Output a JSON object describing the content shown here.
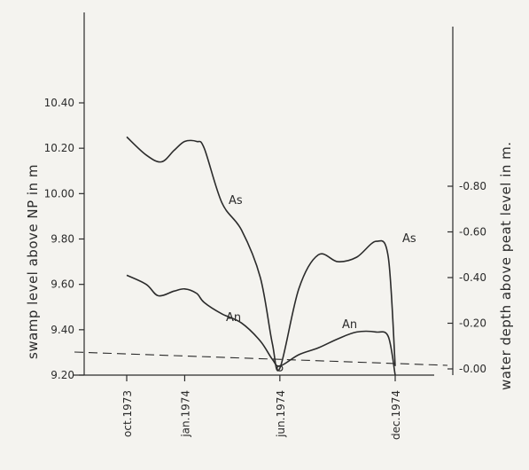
{
  "chart_data": {
    "type": "line",
    "xlabel": "",
    "x_ticks": [
      "oct.1973",
      "jan.1974",
      "jun.1974",
      "dec.1974"
    ],
    "left_axis": {
      "label": "swamp level above NP in m",
      "ylim": [
        9.2,
        10.4
      ],
      "ticks": [
        "9.20",
        "9.40",
        "9.60",
        "9.80",
        "10.00",
        "10.20",
        "10.40"
      ]
    },
    "right_axis": {
      "label": "water depth above peat level in m.",
      "ylim": [
        0.0,
        0.8
      ],
      "ticks": [
        "0.00",
        "0.20",
        "0.40",
        "0.60",
        "0.80"
      ]
    },
    "reference_line": {
      "axis": "right",
      "value": 0.0,
      "style": "dashed"
    },
    "series": [
      {
        "name": "As",
        "x": [
          "1973-10-01",
          "1973-11-01",
          "1973-11-25",
          "1973-12-15",
          "1974-01-01",
          "1974-01-20",
          "1974-02-01",
          "1974-03-01",
          "1974-04-01",
          "1974-05-01",
          "1974-05-20",
          "1974-06-01",
          "1974-07-01",
          "1974-08-01",
          "1974-09-01",
          "1974-10-01",
          "1974-11-01",
          "1974-11-20",
          "1974-12-01"
        ],
        "y": [
          10.25,
          10.17,
          10.14,
          10.19,
          10.23,
          10.23,
          10.2,
          9.96,
          9.84,
          9.63,
          9.34,
          9.23,
          9.58,
          9.73,
          9.7,
          9.72,
          9.79,
          9.72,
          9.24
        ]
      },
      {
        "name": "An",
        "x": [
          "1973-10-01",
          "1973-11-01",
          "1973-11-20",
          "1973-12-15",
          "1974-01-01",
          "1974-01-20",
          "1974-02-01",
          "1974-03-01",
          "1974-04-01",
          "1974-05-01",
          "1974-05-20",
          "1974-06-01",
          "1974-07-01",
          "1974-08-01",
          "1974-09-01",
          "1974-10-01",
          "1974-11-01",
          "1974-11-20",
          "1974-12-01"
        ],
        "y": [
          9.64,
          9.6,
          9.55,
          9.57,
          9.58,
          9.56,
          9.52,
          9.47,
          9.43,
          9.35,
          9.27,
          9.24,
          9.29,
          9.32,
          9.36,
          9.39,
          9.39,
          9.37,
          9.2
        ]
      }
    ]
  }
}
